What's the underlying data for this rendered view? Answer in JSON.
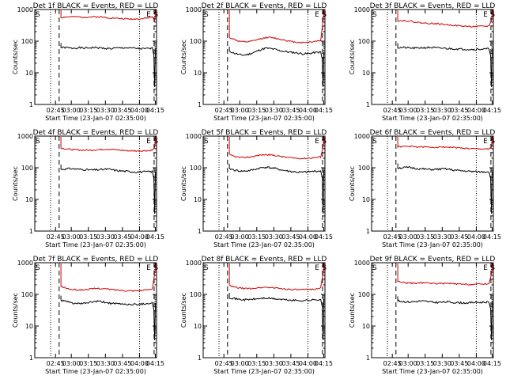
{
  "chart_data": [
    {
      "type": "line",
      "title": "Det 1f BLACK = Events, RED = LLD",
      "ylabel": "Counts/sec",
      "xlabel": "Start Time (23-Jan-07 02:35:00)",
      "x_tick_labels": [
        "02:45",
        "03:00",
        "03:15",
        "03:30",
        "03:45",
        "04:00",
        "04:15"
      ],
      "y_tick_labels": [
        "1",
        "10",
        "100",
        "1000"
      ],
      "scale": "log",
      "ylim": [
        1,
        1000
      ],
      "markers": [
        "S",
        "E",
        "S"
      ],
      "series": [
        {
          "name": "BLACK = Events",
          "color": "#000000",
          "values": [
            62,
            63,
            60,
            61,
            62,
            60,
            61,
            63,
            62,
            60,
            59,
            58,
            60,
            61,
            62,
            60,
            60,
            58,
            57,
            58,
            59
          ]
        },
        {
          "name": "RED = LLD",
          "color": "#d00000",
          "values": [
            560,
            580,
            590,
            585,
            580,
            575,
            580,
            590,
            585,
            580,
            560,
            540,
            530,
            520,
            510,
            500,
            500,
            510,
            520,
            540,
            590
          ]
        }
      ]
    },
    {
      "type": "line",
      "title": "Det 2f BLACK = Events, RED = LLD",
      "ylabel": "Counts/sec",
      "xlabel": "Start Time (23-Jan-07 02:35:00)",
      "x_tick_labels": [
        "02:45",
        "03:00",
        "03:15",
        "03:30",
        "03:45",
        "04:00",
        "04:15"
      ],
      "y_tick_labels": [
        "1",
        "10",
        "100",
        "1000"
      ],
      "scale": "log",
      "ylim": [
        1,
        1000
      ],
      "markers": [
        "S",
        "E",
        "S"
      ],
      "series": [
        {
          "name": "BLACK = Events",
          "color": "#000000",
          "values": [
            48,
            42,
            38,
            36,
            38,
            42,
            48,
            55,
            60,
            58,
            55,
            50,
            48,
            45,
            44,
            42,
            40,
            40,
            42,
            44,
            45
          ]
        },
        {
          "name": "RED = LLD",
          "color": "#d00000",
          "values": [
            130,
            115,
            100,
            95,
            95,
            100,
            110,
            120,
            130,
            130,
            125,
            115,
            110,
            100,
            95,
            92,
            90,
            92,
            95,
            100,
            105
          ]
        }
      ]
    },
    {
      "type": "line",
      "title": "Det 3f BLACK = Events, RED = LLD",
      "ylabel": "Counts/sec",
      "xlabel": "Start Time (23-Jan-07 02:35:00)",
      "x_tick_labels": [
        "02:45",
        "03:00",
        "03:15",
        "03:30",
        "03:45",
        "04:00",
        "04:15"
      ],
      "y_tick_labels": [
        "1",
        "10",
        "100",
        "1000"
      ],
      "scale": "log",
      "ylim": [
        1,
        1000
      ],
      "markers": [
        "S",
        "E",
        "S"
      ],
      "series": [
        {
          "name": "BLACK = Events",
          "color": "#000000",
          "values": [
            62,
            63,
            62,
            60,
            60,
            62,
            62,
            63,
            62,
            60,
            60,
            58,
            58,
            57,
            56,
            56,
            55,
            55,
            56,
            56,
            57
          ]
        },
        {
          "name": "RED = LLD",
          "color": "#d00000",
          "values": [
            440,
            445,
            440,
            420,
            400,
            380,
            370,
            365,
            360,
            350,
            340,
            330,
            320,
            310,
            300,
            295,
            290,
            290,
            292,
            295,
            300
          ]
        }
      ]
    },
    {
      "type": "line",
      "title": "Det 4f BLACK = Events, RED = LLD",
      "ylabel": "Counts/sec",
      "xlabel": "Start Time (23-Jan-07 02:35:00)",
      "x_tick_labels": [
        "02:45",
        "03:00",
        "03:15",
        "03:30",
        "03:45",
        "04:00",
        "04:15"
      ],
      "y_tick_labels": [
        "1",
        "10",
        "100",
        "1000"
      ],
      "scale": "log",
      "ylim": [
        1,
        1000
      ],
      "markers": [
        "S",
        "E",
        "S"
      ],
      "series": [
        {
          "name": "BLACK = Events",
          "color": "#000000",
          "values": [
            90,
            92,
            94,
            92,
            90,
            88,
            86,
            85,
            86,
            88,
            90,
            88,
            82,
            80,
            78,
            76,
            75,
            74,
            74,
            75,
            76
          ]
        },
        {
          "name": "RED = LLD",
          "color": "#d00000",
          "values": [
            420,
            400,
            380,
            370,
            365,
            360,
            360,
            365,
            370,
            380,
            390,
            385,
            370,
            360,
            350,
            345,
            340,
            340,
            345,
            350,
            360
          ]
        }
      ]
    },
    {
      "type": "line",
      "title": "Det 5f BLACK = Events, RED = LLD",
      "ylabel": "Counts/sec",
      "xlabel": "Start Time (23-Jan-07 02:35:00)",
      "x_tick_labels": [
        "02:45",
        "03:00",
        "03:15",
        "03:30",
        "03:45",
        "04:00",
        "04:15"
      ],
      "y_tick_labels": [
        "1",
        "10",
        "100",
        "1000"
      ],
      "scale": "log",
      "ylim": [
        1,
        1000
      ],
      "markers": [
        "S",
        "E",
        "S"
      ],
      "series": [
        {
          "name": "BLACK = Events",
          "color": "#000000",
          "values": [
            95,
            85,
            80,
            78,
            80,
            85,
            92,
            100,
            105,
            100,
            95,
            88,
            82,
            78,
            75,
            72,
            72,
            74,
            76,
            78,
            80
          ]
        },
        {
          "name": "RED = LLD",
          "color": "#d00000",
          "values": [
            260,
            230,
            215,
            210,
            215,
            225,
            240,
            255,
            260,
            255,
            245,
            230,
            220,
            210,
            205,
            200,
            198,
            200,
            205,
            210,
            220
          ]
        }
      ]
    },
    {
      "type": "line",
      "title": "Det 6f BLACK = Events, RED = LLD",
      "ylabel": "Counts/sec",
      "xlabel": "Start Time (23-Jan-07 02:35:00)",
      "x_tick_labels": [
        "02:45",
        "03:00",
        "03:15",
        "03:30",
        "03:45",
        "04:00",
        "04:15"
      ],
      "y_tick_labels": [
        "1",
        "10",
        "100",
        "1000"
      ],
      "scale": "log",
      "ylim": [
        1,
        1000
      ],
      "markers": [
        "S",
        "E",
        "S"
      ],
      "series": [
        {
          "name": "BLACK = Events",
          "color": "#000000",
          "values": [
            98,
            100,
            102,
            100,
            95,
            92,
            90,
            88,
            88,
            90,
            92,
            90,
            85,
            82,
            80,
            78,
            76,
            75,
            74,
            75,
            76
          ]
        },
        {
          "name": "RED = LLD",
          "color": "#d00000",
          "values": [
            460,
            470,
            475,
            470,
            460,
            455,
            450,
            445,
            445,
            450,
            455,
            450,
            440,
            430,
            420,
            410,
            400,
            395,
            390,
            395,
            400
          ]
        }
      ]
    },
    {
      "type": "line",
      "title": "Det 7f BLACK = Events, RED = LLD",
      "ylabel": "Counts/sec",
      "xlabel": "Start Time (23-Jan-07 02:35:00)",
      "x_tick_labels": [
        "02:45",
        "03:00",
        "03:15",
        "03:30",
        "03:45",
        "04:00",
        "04:15"
      ],
      "y_tick_labels": [
        "1",
        "10",
        "100",
        "1000"
      ],
      "scale": "log",
      "ylim": [
        1,
        1000
      ],
      "markers": [
        "S",
        "E",
        "S"
      ],
      "series": [
        {
          "name": "BLACK = Events",
          "color": "#000000",
          "values": [
            65,
            60,
            55,
            52,
            50,
            52,
            55,
            58,
            60,
            58,
            55,
            52,
            50,
            50,
            49,
            48,
            48,
            49,
            50,
            52,
            54
          ]
        },
        {
          "name": "RED = LLD",
          "color": "#d00000",
          "values": [
            180,
            160,
            145,
            140,
            138,
            140,
            145,
            150,
            155,
            152,
            148,
            142,
            138,
            135,
            132,
            130,
            130,
            132,
            135,
            140,
            150
          ]
        }
      ]
    },
    {
      "type": "line",
      "title": "Det 8f BLACK = Events, RED = LLD",
      "ylabel": "Counts/sec",
      "xlabel": "Start Time (23-Jan-07 02:35:00)",
      "x_tick_labels": [
        "02:45",
        "03:00",
        "03:15",
        "03:30",
        "03:45",
        "04:00",
        "04:15"
      ],
      "y_tick_labels": [
        "1",
        "10",
        "100",
        "1000"
      ],
      "scale": "log",
      "ylim": [
        1,
        1000
      ],
      "markers": [
        "S",
        "E",
        "S"
      ],
      "series": [
        {
          "name": "BLACK = Events",
          "color": "#000000",
          "values": [
            80,
            75,
            70,
            68,
            68,
            70,
            72,
            75,
            76,
            74,
            72,
            70,
            68,
            66,
            65,
            64,
            64,
            65,
            66,
            68,
            70
          ]
        },
        {
          "name": "RED = LLD",
          "color": "#d00000",
          "values": [
            190,
            170,
            160,
            155,
            152,
            155,
            160,
            165,
            168,
            165,
            160,
            155,
            150,
            145,
            142,
            140,
            140,
            142,
            145,
            150,
            160
          ]
        }
      ]
    },
    {
      "type": "line",
      "title": "Det 9f BLACK = Events, RED = LLD",
      "ylabel": "Counts/sec",
      "xlabel": "Start Time (23-Jan-07 02:35:00)",
      "x_tick_labels": [
        "02:45",
        "03:00",
        "03:15",
        "03:30",
        "03:45",
        "04:00",
        "04:15"
      ],
      "y_tick_labels": [
        "1",
        "10",
        "100",
        "1000"
      ],
      "scale": "log",
      "ylim": [
        1,
        1000
      ],
      "markers": [
        "S",
        "E",
        "S"
      ],
      "series": [
        {
          "name": "BLACK = Events",
          "color": "#000000",
          "values": [
            62,
            60,
            58,
            58,
            60,
            62,
            60,
            58,
            56,
            56,
            57,
            58,
            56,
            55,
            54,
            54,
            55,
            56,
            56,
            57,
            58
          ]
        },
        {
          "name": "RED = LLD",
          "color": "#d00000",
          "values": [
            260,
            240,
            230,
            225,
            225,
            230,
            230,
            228,
            222,
            220,
            220,
            222,
            218,
            212,
            208,
            206,
            206,
            208,
            210,
            215,
            220
          ]
        }
      ]
    }
  ]
}
